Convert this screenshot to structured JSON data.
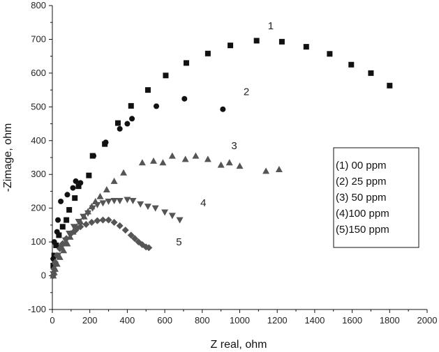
{
  "chart_data": {
    "type": "scatter",
    "title": "",
    "xlabel": "Z real, ohm",
    "ylabel": "-Zimage, ohm",
    "xlim": [
      0,
      2000
    ],
    "ylim": [
      -100,
      800
    ],
    "xticks": [
      0,
      200,
      400,
      600,
      800,
      1000,
      1200,
      1400,
      1600,
      1800,
      2000
    ],
    "yticks": [
      -100,
      0,
      100,
      200,
      300,
      400,
      500,
      600,
      700,
      800
    ],
    "grid": false,
    "legend": {
      "position": "right",
      "entries": [
        "(1) 00  ppm",
        "(2) 25  ppm",
        "(3) 50  ppm",
        "(4)100 ppm",
        "(5)150 ppm"
      ]
    },
    "series": [
      {
        "label": "1",
        "marker": "square",
        "color": "#111111",
        "label_at": [
          1150,
          730
        ],
        "points": [
          [
            5,
            30
          ],
          [
            10,
            60
          ],
          [
            20,
            90
          ],
          [
            35,
            120
          ],
          [
            55,
            145
          ],
          [
            75,
            165
          ],
          [
            90,
            195
          ],
          [
            120,
            230
          ],
          [
            140,
            265
          ],
          [
            195,
            297
          ],
          [
            215,
            355
          ],
          [
            280,
            390
          ],
          [
            350,
            452
          ],
          [
            420,
            503
          ],
          [
            510,
            550
          ],
          [
            605,
            593
          ],
          [
            715,
            630
          ],
          [
            830,
            658
          ],
          [
            950,
            682
          ],
          [
            1090,
            696
          ],
          [
            1225,
            693
          ],
          [
            1355,
            678
          ],
          [
            1480,
            657
          ],
          [
            1595,
            625
          ],
          [
            1700,
            600
          ],
          [
            1800,
            563
          ]
        ]
      },
      {
        "label": "2",
        "marker": "circle",
        "color": "#111111",
        "label_at": [
          1020,
          535
        ],
        "points": [
          [
            5,
            50
          ],
          [
            10,
            100
          ],
          [
            25,
            130
          ],
          [
            30,
            165
          ],
          [
            45,
            220
          ],
          [
            80,
            240
          ],
          [
            110,
            260
          ],
          [
            125,
            280
          ],
          [
            150,
            275
          ],
          [
            220,
            355
          ],
          [
            285,
            395
          ],
          [
            360,
            435
          ],
          [
            400,
            450
          ],
          [
            425,
            465
          ],
          [
            555,
            502
          ],
          [
            705,
            524
          ],
          [
            910,
            493
          ]
        ]
      },
      {
        "label": "3",
        "marker": "triangle-up",
        "color": "#555555",
        "label_at": [
          955,
          375
        ],
        "points": [
          [
            5,
            0
          ],
          [
            10,
            10
          ],
          [
            15,
            20
          ],
          [
            25,
            35
          ],
          [
            40,
            55
          ],
          [
            60,
            75
          ],
          [
            80,
            95
          ],
          [
            95,
            115
          ],
          [
            110,
            130
          ],
          [
            130,
            145
          ],
          [
            150,
            160
          ],
          [
            170,
            175
          ],
          [
            190,
            190
          ],
          [
            210,
            205
          ],
          [
            230,
            220
          ],
          [
            255,
            235
          ],
          [
            290,
            255
          ],
          [
            330,
            280
          ],
          [
            380,
            305
          ],
          [
            480,
            335
          ],
          [
            540,
            340
          ],
          [
            590,
            335
          ],
          [
            640,
            355
          ],
          [
            710,
            345
          ],
          [
            765,
            355
          ],
          [
            830,
            345
          ],
          [
            900,
            328
          ],
          [
            945,
            335
          ],
          [
            1000,
            325
          ],
          [
            1140,
            310
          ],
          [
            1210,
            315
          ]
        ]
      },
      {
        "label": "4",
        "marker": "triangle-down",
        "color": "#555555",
        "label_at": [
          790,
          205
        ],
        "points": [
          [
            5,
            5
          ],
          [
            15,
            30
          ],
          [
            30,
            60
          ],
          [
            50,
            85
          ],
          [
            70,
            105
          ],
          [
            90,
            125
          ],
          [
            115,
            145
          ],
          [
            140,
            160
          ],
          [
            165,
            175
          ],
          [
            190,
            185
          ],
          [
            215,
            200
          ],
          [
            240,
            210
          ],
          [
            270,
            215
          ],
          [
            300,
            220
          ],
          [
            330,
            222
          ],
          [
            360,
            222
          ],
          [
            400,
            225
          ],
          [
            430,
            222
          ],
          [
            470,
            212
          ],
          [
            510,
            205
          ],
          [
            550,
            200
          ],
          [
            600,
            188
          ],
          [
            640,
            178
          ],
          [
            680,
            165
          ]
        ]
      },
      {
        "label": "5",
        "marker": "diamond",
        "color": "#555555",
        "label_at": [
          660,
          90
        ],
        "points": [
          [
            3,
            0
          ],
          [
            8,
            20
          ],
          [
            15,
            40
          ],
          [
            25,
            60
          ],
          [
            40,
            80
          ],
          [
            55,
            95
          ],
          [
            75,
            110
          ],
          [
            100,
            125
          ],
          [
            125,
            135
          ],
          [
            150,
            145
          ],
          [
            180,
            152
          ],
          [
            210,
            158
          ],
          [
            240,
            163
          ],
          [
            270,
            165
          ],
          [
            300,
            165
          ],
          [
            330,
            158
          ],
          [
            360,
            148
          ],
          [
            390,
            135
          ],
          [
            420,
            120
          ],
          [
            440,
            110
          ],
          [
            460,
            100
          ],
          [
            480,
            92
          ],
          [
            500,
            85
          ],
          [
            515,
            83
          ]
        ]
      }
    ]
  }
}
